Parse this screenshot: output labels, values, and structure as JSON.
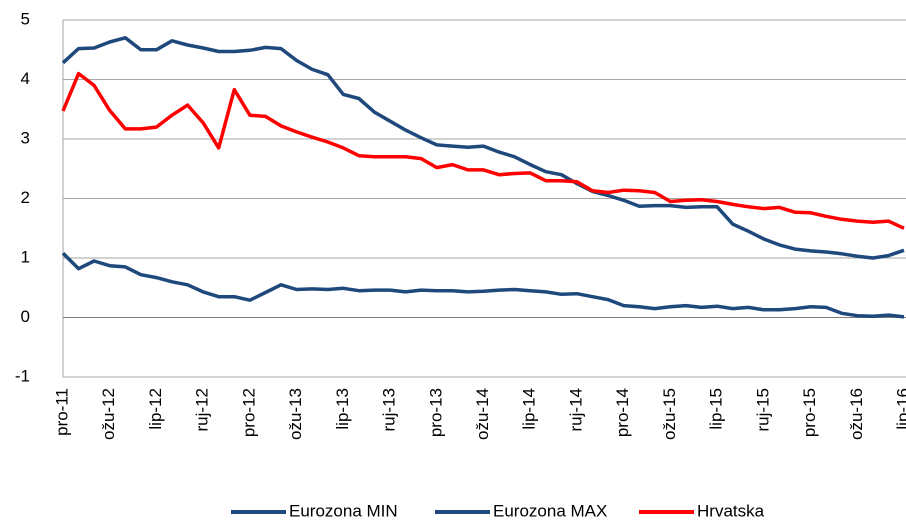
{
  "chart_data": {
    "type": "line",
    "categories": [
      "pro-11",
      null,
      null,
      "ožu-12",
      null,
      null,
      "lip-12",
      null,
      null,
      "ruj-12",
      null,
      null,
      "pro-12",
      null,
      null,
      "ožu-13",
      null,
      null,
      "lip-13",
      null,
      null,
      "ruj-13",
      null,
      null,
      "pro-13",
      null,
      null,
      "ožu-14",
      null,
      null,
      "lip-14",
      null,
      null,
      "ruj-14",
      null,
      null,
      "pro-14",
      null,
      null,
      "ožu-15",
      null,
      null,
      "lip-15",
      null,
      null,
      "ruj-15",
      null,
      null,
      "pro-15",
      null,
      null,
      "ožu-16",
      null,
      null,
      "lip-16"
    ],
    "series": [
      {
        "name": "Eurozona MIN",
        "color": "#1f497d",
        "values": [
          1.08,
          0.82,
          0.95,
          0.87,
          0.85,
          0.72,
          0.67,
          0.6,
          0.55,
          0.43,
          0.35,
          0.35,
          0.29,
          0.42,
          0.55,
          0.47,
          0.48,
          0.47,
          0.49,
          0.45,
          0.46,
          0.46,
          0.43,
          0.46,
          0.45,
          0.45,
          0.43,
          0.44,
          0.46,
          0.47,
          0.45,
          0.43,
          0.39,
          0.4,
          0.35,
          0.3,
          0.2,
          0.18,
          0.15,
          0.18,
          0.2,
          0.17,
          0.19,
          0.15,
          0.17,
          0.13,
          0.13,
          0.15,
          0.18,
          0.17,
          0.07,
          0.03,
          0.02,
          0.04,
          0.01
        ]
      },
      {
        "name": "Eurozona MAX",
        "color": "#1f497d",
        "values": [
          4.28,
          4.52,
          4.53,
          4.63,
          4.7,
          4.5,
          4.5,
          4.65,
          4.58,
          4.53,
          4.47,
          4.47,
          4.49,
          4.54,
          4.52,
          4.32,
          4.17,
          4.08,
          3.75,
          3.68,
          3.45,
          3.3,
          3.15,
          3.02,
          2.9,
          2.88,
          2.86,
          2.88,
          2.78,
          2.7,
          2.57,
          2.45,
          2.4,
          2.25,
          2.12,
          2.05,
          1.97,
          1.87,
          1.88,
          1.88,
          1.85,
          1.86,
          1.86,
          1.57,
          1.45,
          1.32,
          1.22,
          1.15,
          1.12,
          1.1,
          1.07,
          1.03,
          1.0,
          1.04,
          1.13
        ]
      },
      {
        "name": "Hrvatska",
        "color": "#ff0000",
        "values": [
          3.47,
          4.1,
          3.9,
          3.48,
          3.17,
          3.17,
          3.2,
          3.4,
          3.57,
          3.27,
          2.85,
          3.83,
          3.4,
          3.38,
          3.22,
          3.12,
          3.03,
          2.95,
          2.85,
          2.72,
          2.7,
          2.7,
          2.7,
          2.67,
          2.52,
          2.57,
          2.48,
          2.48,
          2.4,
          2.42,
          2.43,
          2.3,
          2.3,
          2.28,
          2.13,
          2.1,
          2.14,
          2.13,
          2.1,
          1.95,
          1.97,
          1.98,
          1.95,
          1.9,
          1.86,
          1.83,
          1.85,
          1.77,
          1.76,
          1.7,
          1.65,
          1.62,
          1.6,
          1.62,
          1.5
        ]
      }
    ],
    "ylim": [
      -1,
      5
    ],
    "yticks": [
      -1,
      0,
      1,
      2,
      3,
      4,
      5
    ],
    "grid": true,
    "legend": "bottom"
  }
}
